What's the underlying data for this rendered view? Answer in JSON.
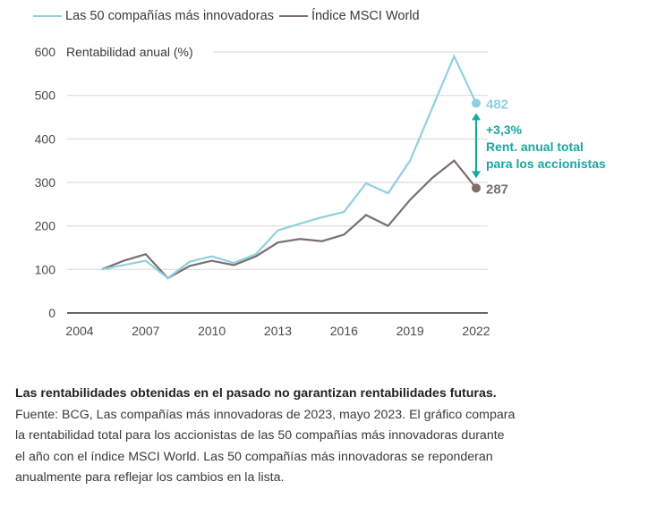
{
  "chart_data": {
    "type": "line",
    "title": "",
    "ylabel": "Rentabilidad anual (%)",
    "xlabel": "",
    "x": [
      2005,
      2006,
      2007,
      2008,
      2009,
      2010,
      2011,
      2012,
      2013,
      2014,
      2015,
      2016,
      2017,
      2018,
      2019,
      2020,
      2021,
      2022
    ],
    "xlim": [
      2004,
      2022
    ],
    "ylim": [
      0,
      600
    ],
    "xticks": [
      "2004",
      "2007",
      "2010",
      "2013",
      "2016",
      "2019",
      "2022"
    ],
    "yticks": [
      "0",
      "100",
      "200",
      "300",
      "400",
      "500",
      "600"
    ],
    "grid": "horizontal",
    "legend_position": "top",
    "series": [
      {
        "name": "Las 50 compañías más innovadoras",
        "color": "#8fd0e0",
        "values": [
          100,
          110,
          120,
          80,
          118,
          130,
          115,
          135,
          190,
          205,
          220,
          232,
          298,
          275,
          350,
          470,
          590,
          482
        ]
      },
      {
        "name": "Índice MSCI World",
        "color": "#7a6f6d",
        "values": [
          100,
          120,
          135,
          80,
          108,
          120,
          110,
          130,
          162,
          170,
          165,
          180,
          225,
          200,
          260,
          310,
          350,
          287
        ]
      }
    ],
    "end_labels": [
      {
        "series": 0,
        "text": "482",
        "color": "#8fd0e0"
      },
      {
        "series": 1,
        "text": "287",
        "color": "#7a6f6d"
      }
    ],
    "annotation": {
      "lines": [
        "+3,3%",
        "Rent. anual total",
        "para los accionistas"
      ],
      "color": "#1aa7a3"
    }
  },
  "caption": {
    "disclaimer": "Las rentabilidades obtenidas en el pasado no garantizan rentabilidades futuras.",
    "lines": [
      "Fuente: BCG, Las compañías más innovadoras de 2023, mayo 2023. El gráfico compara",
      "la rentabilidad total para los accionistas de las 50 compañías más innovadoras durante",
      "el año con el índice MSCI World. Las 50 compañías más innovadoras se reponderan",
      "anualmente para reflejar los cambios en la lista."
    ]
  }
}
